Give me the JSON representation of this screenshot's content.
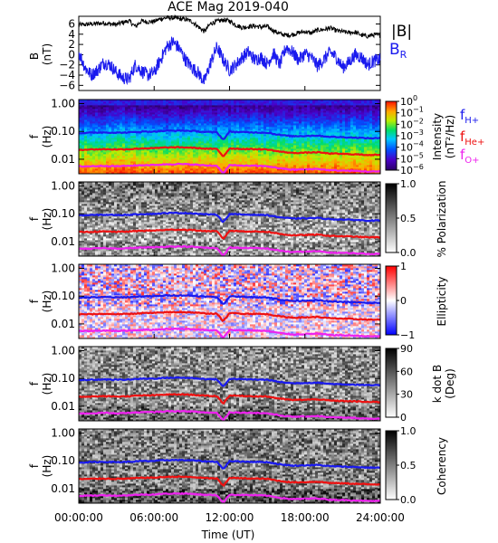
{
  "title": "ACE Mag 2019-040",
  "xaxis": {
    "label": "Time (UT)",
    "ticks": [
      "00:00:00",
      "06:00:00",
      "12:00:00",
      "18:00:00",
      "24:00:00"
    ],
    "range_hours": [
      0,
      24
    ]
  },
  "freq_axis": {
    "ylabel_top": "f",
    "ylabel_bottom": "(Hz)",
    "ticks": [
      "1.00",
      "0.10",
      "0.01"
    ],
    "scale": "log",
    "range": [
      0.003,
      1.4
    ]
  },
  "line_colors": {
    "B_total": "#000000",
    "B_R": "#1a1aee",
    "f_H": "#1a1aee",
    "f_He": "#ee1111",
    "f_O": "#ee22ee"
  },
  "legend": {
    "B_total": "|B|",
    "B_R_main": "B",
    "B_R_sub": "R",
    "f_H_main": "f",
    "f_H_sub": "H+",
    "f_He_main": "f",
    "f_He_sub": "He+",
    "f_O_main": "f",
    "f_O_sub": "O+"
  },
  "panels": [
    {
      "key": "bfield",
      "ylabel_top": "B",
      "ylabel_bottom": "(nT)",
      "ticks": [
        "6",
        "4",
        "2",
        "0",
        "−2",
        "−4",
        "−6"
      ]
    },
    {
      "key": "intensity",
      "colorbar_title": "Intensity",
      "colorbar_unit": "(nT²/Hz)",
      "colormap": "rainbow",
      "colorbar_ticks": [
        {
          "base": "10",
          "exp": "0"
        },
        {
          "base": "10",
          "exp": "−1"
        },
        {
          "base": "10",
          "exp": "−2"
        },
        {
          "base": "10",
          "exp": "−3"
        },
        {
          "base": "10",
          "exp": "−4"
        },
        {
          "base": "10",
          "exp": "−5"
        },
        {
          "base": "10",
          "exp": "−6"
        }
      ]
    },
    {
      "key": "polarization",
      "colorbar_title": "% Polarization",
      "colormap": "gray",
      "colorbar_ticks": [
        "1.0",
        "0.5",
        "0.0"
      ]
    },
    {
      "key": "ellipticity",
      "colorbar_title": "Ellipticity",
      "colormap": "bwr",
      "colorbar_ticks": [
        "1",
        "0",
        "−1"
      ]
    },
    {
      "key": "kdotb",
      "colorbar_title": "k dot B",
      "colorbar_unit": "(Deg)",
      "colormap": "gray",
      "colorbar_ticks": [
        "90",
        "60",
        "30",
        "0"
      ]
    },
    {
      "key": "coherency",
      "colorbar_title": "Coherency",
      "colormap": "gray",
      "colorbar_ticks": [
        "1.0",
        "0.5",
        "0.0"
      ]
    }
  ],
  "chart_data": [
    {
      "type": "line",
      "title": "ACE Mag 2019-040",
      "xlabel": "Time (UT)",
      "ylabel": "B (nT)",
      "xlim": [
        0,
        24
      ],
      "ylim": [
        -7,
        7.5
      ],
      "series": [
        {
          "name": "|B|",
          "x": [
            0,
            0.5,
            1,
            1.5,
            2,
            2.5,
            3,
            3.5,
            4,
            4.5,
            5,
            5.5,
            6,
            6.5,
            7,
            7.5,
            8,
            8.5,
            9,
            9.5,
            10,
            10.5,
            11,
            11.5,
            12,
            12.5,
            13,
            13.5,
            14,
            14.5,
            15,
            15.5,
            16,
            16.5,
            17,
            17.5,
            18,
            18.5,
            19,
            19.5,
            20,
            20.5,
            21,
            21.5,
            22,
            22.5,
            23,
            23.5,
            24
          ],
          "values": [
            5.8,
            5.9,
            6,
            6.1,
            6.2,
            6,
            5.9,
            6.3,
            6.6,
            5.5,
            6.6,
            6.4,
            6.5,
            7,
            7.2,
            7.2,
            7,
            6.9,
            6.5,
            5.5,
            4.5,
            6.1,
            6.5,
            6.8,
            6.6,
            5.8,
            5.3,
            5.5,
            5.6,
            5.4,
            5.5,
            4.7,
            4.1,
            3.8,
            3.9,
            4.3,
            4.5,
            4.2,
            4.8,
            4.9,
            5.2,
            4.7,
            4.5,
            4.3,
            4.4,
            3.8,
            3.6,
            3.9,
            3.8
          ]
        },
        {
          "name": "B_R",
          "x": [
            0,
            0.5,
            1,
            1.5,
            2,
            2.5,
            3,
            3.5,
            4,
            4.5,
            5,
            5.5,
            6,
            6.5,
            7,
            7.5,
            8,
            8.5,
            9,
            9.5,
            10,
            10.5,
            11,
            11.5,
            12,
            12.5,
            13,
            13.5,
            14,
            14.5,
            15,
            15.5,
            16,
            16.5,
            17,
            17.5,
            18,
            18.5,
            19,
            19.5,
            20,
            20.5,
            21,
            21.5,
            22,
            22.5,
            23,
            23.5,
            24
          ],
          "values": [
            0.5,
            -2.5,
            -4,
            -3,
            -1.5,
            -2,
            -3.5,
            -4.5,
            -4.8,
            -2,
            -3.2,
            -4,
            -3.5,
            -1,
            1.5,
            2.5,
            1.2,
            -1,
            -2.5,
            -3.5,
            -5.3,
            -1.5,
            1.5,
            -1,
            -3,
            -2,
            -0.5,
            0.5,
            -1,
            -0.5,
            -1.8,
            0.3,
            -2,
            1.5,
            0.5,
            -1,
            0.2,
            -0.5,
            -2.2,
            -1,
            0.5,
            -0.5,
            -2.5,
            -1.5,
            0,
            -0.5,
            -2,
            -1.2,
            -1
          ]
        }
      ]
    },
    {
      "type": "heatmap",
      "name_note": "Spectrograms share gyrofrequency overlays",
      "xlim": [
        0,
        24
      ],
      "ylim_hz": [
        0.003,
        1.4
      ],
      "series": [
        {
          "name": "f_H+",
          "unit": "Hz",
          "x": [
            0,
            1,
            2,
            3,
            4,
            5,
            6,
            7,
            8,
            9,
            10,
            11,
            11.5,
            12,
            13,
            14,
            15,
            16,
            17,
            18,
            19,
            20,
            21,
            22,
            23,
            24
          ],
          "values": [
            0.087,
            0.09,
            0.092,
            0.09,
            0.092,
            0.098,
            0.099,
            0.106,
            0.107,
            0.104,
            0.096,
            0.093,
            0.05,
            0.098,
            0.094,
            0.092,
            0.09,
            0.075,
            0.067,
            0.069,
            0.071,
            0.064,
            0.062,
            0.06,
            0.057,
            0.057
          ]
        },
        {
          "name": "f_He+",
          "unit": "Hz",
          "x": [
            0,
            1,
            2,
            3,
            4,
            5,
            6,
            7,
            8,
            9,
            10,
            11,
            11.5,
            12,
            13,
            14,
            15,
            16,
            17,
            18,
            19,
            20,
            21,
            22,
            23,
            24
          ],
          "values": [
            0.022,
            0.0225,
            0.023,
            0.0225,
            0.023,
            0.0245,
            0.0248,
            0.0265,
            0.0268,
            0.026,
            0.024,
            0.0232,
            0.0125,
            0.0245,
            0.0235,
            0.023,
            0.0225,
            0.0188,
            0.0168,
            0.0172,
            0.0178,
            0.016,
            0.0155,
            0.015,
            0.0143,
            0.0143
          ]
        },
        {
          "name": "f_O+",
          "unit": "Hz",
          "x": [
            0,
            1,
            2,
            3,
            4,
            5,
            6,
            7,
            8,
            9,
            10,
            11,
            11.5,
            12,
            13,
            14,
            15,
            16,
            17,
            18,
            19,
            20,
            21,
            22,
            23,
            24
          ],
          "values": [
            0.0055,
            0.0056,
            0.0058,
            0.0056,
            0.0058,
            0.0061,
            0.0062,
            0.0066,
            0.0067,
            0.0065,
            0.006,
            0.0058,
            0.0031,
            0.0061,
            0.0059,
            0.0058,
            0.0056,
            0.0047,
            0.0042,
            0.0043,
            0.0045,
            0.004,
            0.0039,
            0.0038,
            0.0036,
            0.0036
          ]
        }
      ]
    }
  ]
}
